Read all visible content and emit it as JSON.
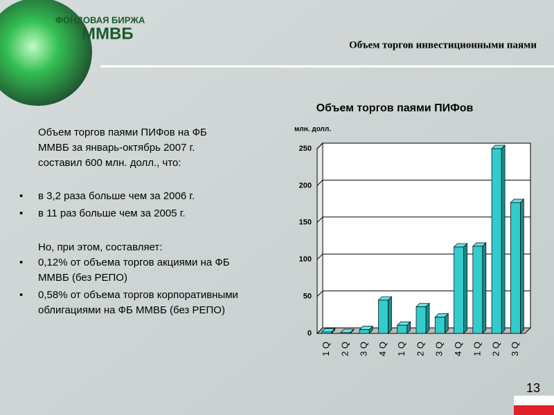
{
  "logo": {
    "top": "ФОНДОВАЯ БИРЖА",
    "bottom": "ММВБ"
  },
  "heading": "Объем торгов инвестиционными паями",
  "intro": [
    "Объем торгов паями ПИФов на ФБ",
    "ММВБ за январь-октябрь 2007 г.",
    "составил 600 млн. долл., что:"
  ],
  "bullets1": [
    [
      "в 3,2 раза больше чем за 2006 г."
    ],
    [
      "в 11 раз больше чем за 2005 г."
    ]
  ],
  "note": "Но, при этом, составляет:",
  "bullets2": [
    [
      "0,12% от объема торгов акциями на ФБ",
      "ММВБ (без РЕПО)"
    ],
    [
      "0,58% от объема торгов корпоративными",
      "облигациями на ФБ ММВБ (без РЕПО)"
    ]
  ],
  "page_number": "13",
  "chart_data": {
    "type": "bar",
    "title": "Объем торгов паями ПИФов",
    "ylabel": "млн. долл.",
    "categories": [
      "1 Q",
      "2 Q",
      "3 Q",
      "4 Q",
      "1 Q",
      "2 Q",
      "3 Q",
      "4 Q",
      "1 Q",
      "2 Q",
      "3 Q"
    ],
    "values": [
      2,
      1,
      5,
      45,
      11,
      36,
      22,
      117,
      118,
      250,
      177
    ],
    "color": "#33cccc",
    "ylim": [
      0,
      250
    ],
    "yticks": [
      0,
      50,
      100,
      150,
      200,
      250
    ],
    "grid": true
  }
}
